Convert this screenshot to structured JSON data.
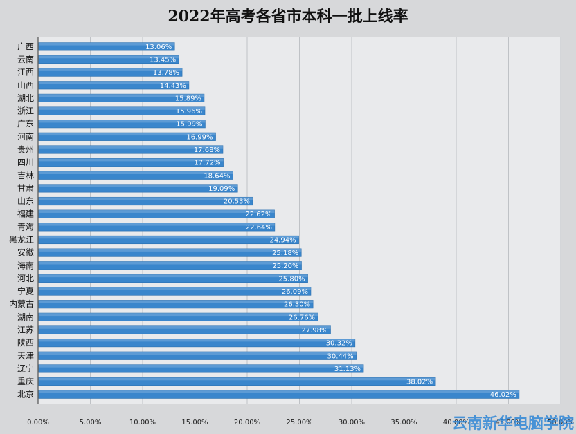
{
  "chart_data": {
    "type": "bar",
    "orientation": "horizontal",
    "title": "2022年高考各省市本科一批上线率",
    "categories": [
      "广西",
      "云南",
      "江西",
      "山西",
      "湖北",
      "浙江",
      "广东",
      "河南",
      "贵州",
      "四川",
      "吉林",
      "甘肃",
      "山东",
      "福建",
      "青海",
      "黑龙江",
      "安徽",
      "海南",
      "河北",
      "宁夏",
      "内蒙古",
      "湖南",
      "江苏",
      "陕西",
      "天津",
      "辽宁",
      "重庆",
      "北京"
    ],
    "values": [
      13.06,
      13.45,
      13.78,
      14.43,
      15.89,
      15.96,
      15.99,
      16.99,
      17.68,
      17.72,
      18.64,
      19.09,
      20.53,
      22.62,
      22.64,
      24.94,
      25.18,
      25.2,
      25.8,
      26.09,
      26.3,
      26.76,
      27.98,
      30.32,
      30.44,
      31.13,
      38.02,
      46.02
    ],
    "value_labels": [
      "13.06%",
      "13.45%",
      "13.78%",
      "14.43%",
      "15.89%",
      "15.96%",
      "15.99%",
      "16.99%",
      "17.68%",
      "17.72%",
      "18.64%",
      "19.09%",
      "20.53%",
      "22.62%",
      "22.64%",
      "24.94%",
      "25.18%",
      "25.20%",
      "25.80%",
      "26.09%",
      "26.30%",
      "26.76%",
      "27.98%",
      "30.32%",
      "30.44%",
      "31.13%",
      "38.02%",
      "46.02%"
    ],
    "x_ticks": [
      "0.00%",
      "5.00%",
      "10.00%",
      "15.00%",
      "20.00%",
      "25.00%",
      "30.00%",
      "35.00%",
      "40.00%",
      "45.00%",
      "50.00%"
    ],
    "xlim": [
      0,
      50
    ],
    "xlabel": "",
    "ylabel": "",
    "grid": true,
    "bar_color": "#3a86cc"
  },
  "watermark": "云南新华电脑学院"
}
